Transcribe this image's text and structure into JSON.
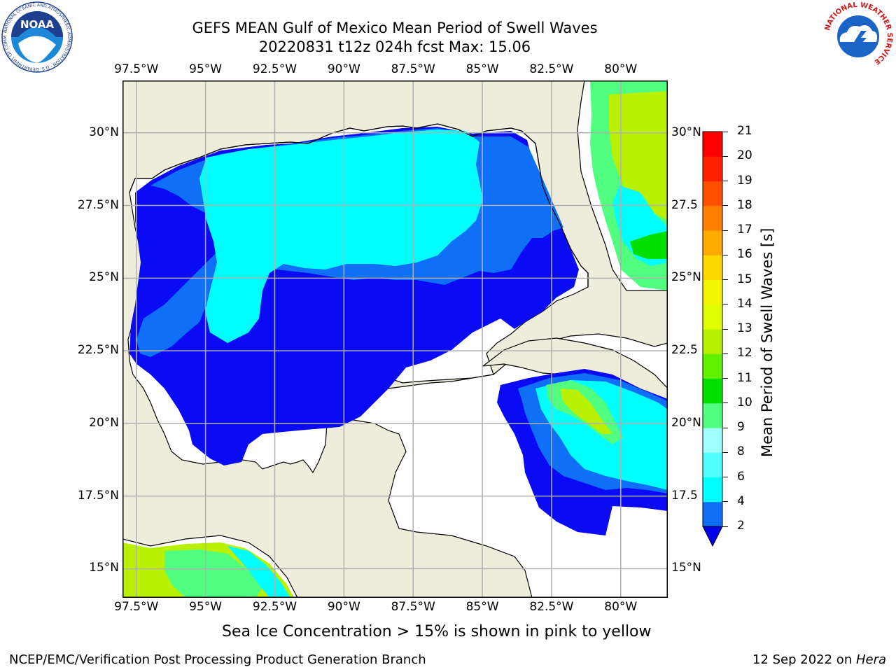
{
  "header": {
    "title_line1": "GEFS MEAN Gulf of Mexico Mean Period of Swell Waves",
    "title_line2": "20220831 t12z 024h fcst   Max: 15.06"
  },
  "map": {
    "lon_labels": [
      "97.5°W",
      "95°W",
      "92.5°W",
      "90°W",
      "87.5°W",
      "85°W",
      "82.5°W",
      "80°W"
    ],
    "lat_labels_left": [
      "30°N",
      "27.5°N",
      "25°N",
      "22.5°N",
      "20°N",
      "17.5°N",
      "15°N"
    ],
    "lat_labels_right": [
      "30°N",
      "27.5",
      "25°N",
      "22.5",
      "20°N",
      "17.5",
      "15°N"
    ],
    "extent": {
      "lon_min": -98,
      "lon_max": -78.3,
      "lat_min": 14,
      "lat_max": 31.8
    },
    "colors": {
      "land": "#eeecdb",
      "ocean_nodata": "#ffffff",
      "grid": "#b0b0b0"
    }
  },
  "colorbar": {
    "title": "Mean Period of Swell Waves [s]",
    "ticks": [
      "2",
      "4",
      "6",
      "8",
      "9",
      "10",
      "11",
      "12",
      "13",
      "14",
      "15",
      "16",
      "17",
      "18",
      "19",
      "20",
      "21"
    ],
    "colors": [
      "#0a0af5",
      "#0f6ff7",
      "#00ffff",
      "#50ffff",
      "#a0ffff",
      "#50ff80",
      "#00e000",
      "#60f000",
      "#b8f000",
      "#e0ff00",
      "#f5f500",
      "#ffd800",
      "#ffaa00",
      "#ff8000",
      "#ff5000",
      "#ff2000",
      "#ff0000"
    ],
    "under_color": "#0000ee"
  },
  "caption": "Sea Ice Concentration > 15% is shown in pink to yellow",
  "footer": {
    "left": "NCEP/EMC/Verification Post Processing Product Generation Branch",
    "right_prefix": "12 Sep 2022 on ",
    "right_host": "Hera"
  },
  "logos": {
    "noaa_text": "NOAA",
    "noaa_ring": "NATIONAL OCEANIC AND ATMOSPHERIC ADMINISTRATION · U.S. DEPARTMENT OF COMMERCE",
    "nws_ring": "NATIONAL WEATHER SERVICE"
  }
}
